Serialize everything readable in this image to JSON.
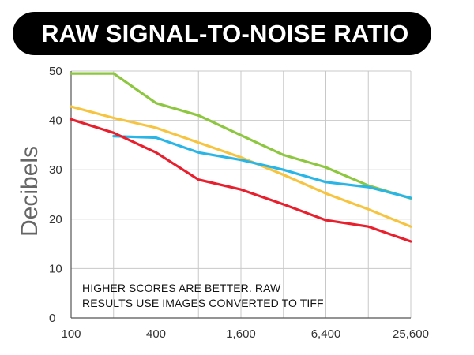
{
  "chart_data": {
    "type": "line",
    "title": "RAW SIGNAL-TO-NOISE RATIO",
    "ylabel": "Decibels",
    "xlabel": "",
    "x": [
      100,
      200,
      400,
      800,
      1600,
      3200,
      6400,
      12800,
      25600
    ],
    "x_scale": "log2",
    "x_tick_labels": [
      "100",
      "400",
      "1,600",
      "6,400",
      "25,600"
    ],
    "x_tick_values": [
      100,
      400,
      1600,
      6400,
      25600
    ],
    "y_ticks": [
      0,
      10,
      20,
      30,
      40,
      50
    ],
    "ylim": [
      0,
      50
    ],
    "grid": true,
    "annotation": [
      "HIGHER SCORES ARE BETTER. RAW",
      "RESULTS USE IMAGES CONVERTED TO TIFF"
    ],
    "series": [
      {
        "color": "#8dc63f",
        "values": [
          49.5,
          49.5,
          43.5,
          41.0,
          37.0,
          33.0,
          30.5,
          26.8,
          24.2
        ]
      },
      {
        "color": "#f7c440",
        "values": [
          42.8,
          40.5,
          38.5,
          35.5,
          32.5,
          29.0,
          25.2,
          22.0,
          18.5
        ]
      },
      {
        "color": "#29b6e6",
        "values": [
          null,
          36.8,
          36.5,
          33.5,
          32.0,
          30.0,
          27.5,
          26.5,
          24.3
        ]
      },
      {
        "color": "#e8202e",
        "values": [
          40.2,
          37.5,
          33.5,
          28.0,
          26.0,
          23.0,
          19.8,
          18.5,
          15.5
        ]
      }
    ]
  }
}
